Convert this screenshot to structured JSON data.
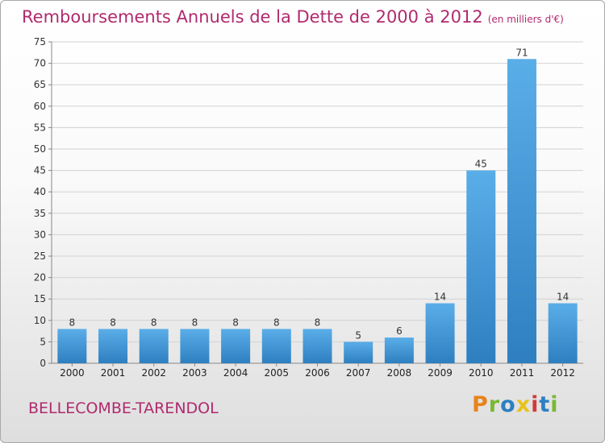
{
  "header": {
    "title": "Remboursements Annuels de la Dette de 2000 à 2012",
    "unit": "(en milliers d'€)"
  },
  "footer": {
    "city": "BELLECOMBE-TARENDOL",
    "brand": "Proxiti",
    "brand_colors": [
      "#e8831a",
      "#7ab833",
      "#2d7fc1",
      "#e8c21a",
      "#d33b3b",
      "#2d7fc1",
      "#7ab833"
    ]
  },
  "colors": {
    "title": "#b02a6e",
    "bar_top": "#5aaee8",
    "bar_bottom": "#2e7fc0"
  },
  "chart_data": {
    "type": "bar",
    "categories": [
      "2000",
      "2001",
      "2002",
      "2003",
      "2004",
      "2005",
      "2006",
      "2007",
      "2008",
      "2009",
      "2010",
      "2011",
      "2012"
    ],
    "values": [
      8,
      8,
      8,
      8,
      8,
      8,
      8,
      5,
      6,
      14,
      45,
      71,
      14
    ],
    "data_labels": [
      "8",
      "8",
      "8",
      "8",
      "8",
      "8",
      "8",
      "5",
      "6",
      "14",
      "45",
      "71",
      "14"
    ],
    "ylim": [
      0,
      75
    ],
    "yticks": [
      0,
      5,
      10,
      15,
      20,
      25,
      30,
      35,
      40,
      45,
      50,
      55,
      60,
      65,
      70,
      75
    ],
    "grid": true,
    "xlabel": "",
    "ylabel": ""
  }
}
